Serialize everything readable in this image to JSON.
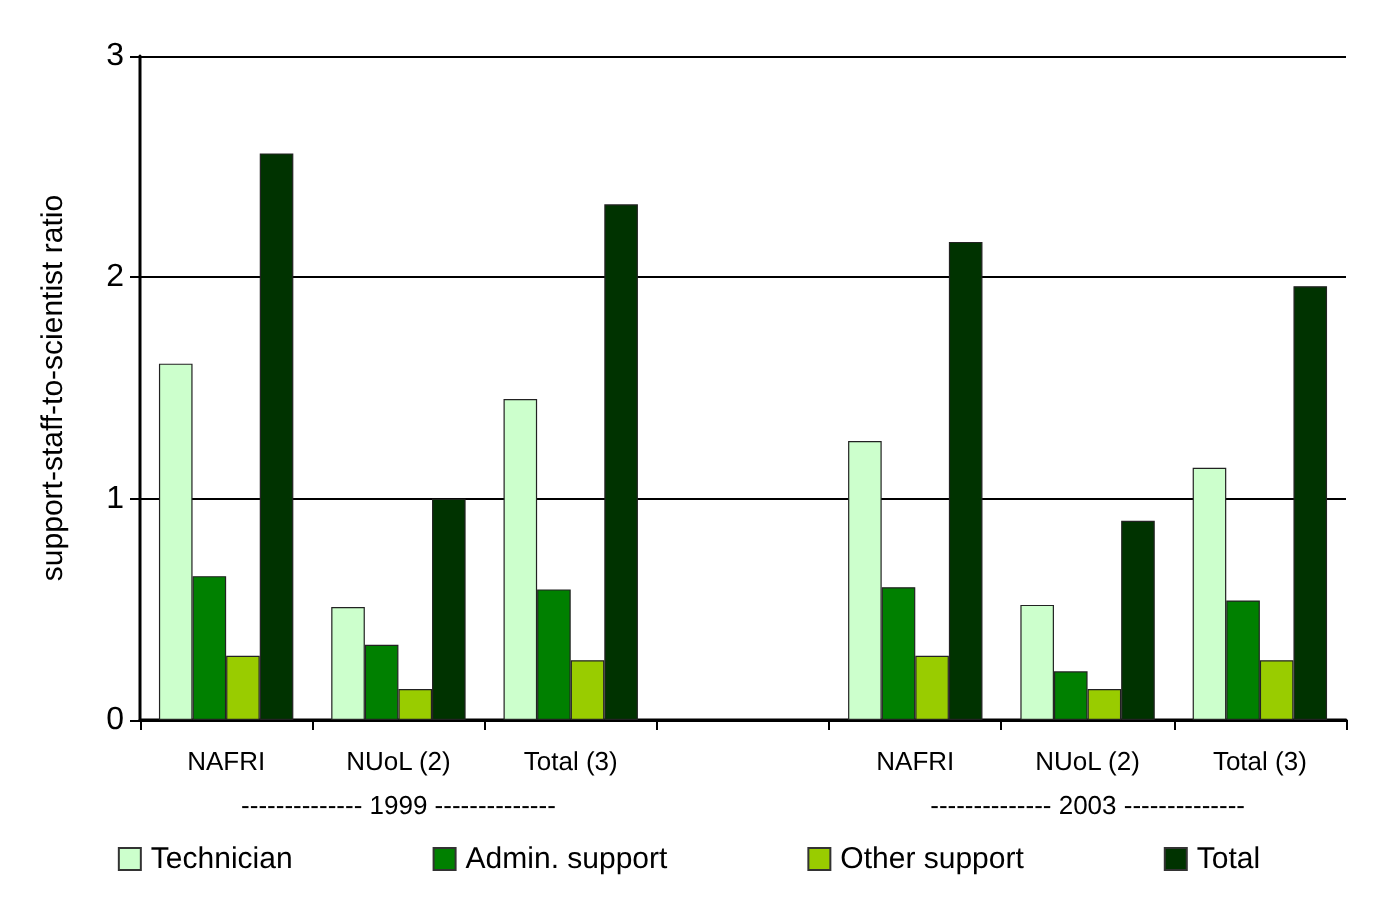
{
  "chart_data": {
    "type": "bar",
    "ylabel": "support-staff-to-scientist ratio",
    "categories": [
      "NAFRI",
      "NUoL (2)",
      "Total (3)",
      null,
      "NAFRI",
      "NUoL (2)",
      "Total (3)"
    ],
    "series": [
      {
        "name": "Technician",
        "color": "#ccffcc",
        "values": [
          1.61,
          0.51,
          1.45,
          null,
          1.26,
          0.52,
          1.14
        ]
      },
      {
        "name": "Admin. support",
        "color": "#008000",
        "values": [
          0.65,
          0.34,
          0.59,
          null,
          0.6,
          0.22,
          0.54
        ]
      },
      {
        "name": "Other support",
        "color": "#99cc00",
        "values": [
          0.29,
          0.14,
          0.27,
          null,
          0.29,
          0.14,
          0.27
        ]
      },
      {
        "name": "Total",
        "color": "#003300",
        "values": [
          2.56,
          1.0,
          2.33,
          null,
          2.16,
          0.9,
          1.96
        ]
      }
    ],
    "annotations": [
      "-------------- 1999 --------------",
      "-------------- 2003 --------------"
    ],
    "ylim": [
      0,
      3
    ],
    "yticks": [
      0,
      1,
      2,
      3
    ],
    "grid": "y",
    "legend": "bottom"
  }
}
